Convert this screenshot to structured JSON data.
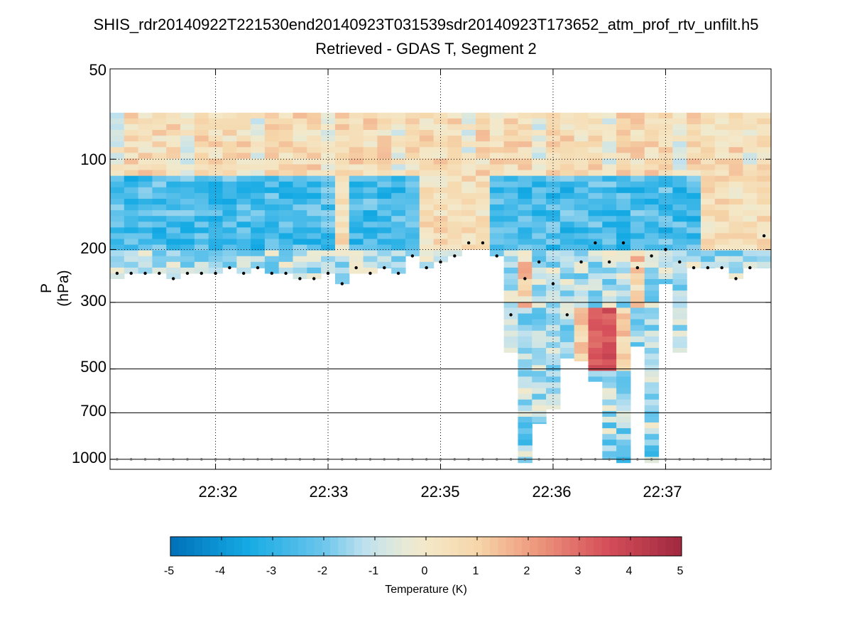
{
  "chart_data": {
    "type": "heatmap",
    "title": "SHIS_rdr20140922T221530end20140923T031539sdr20140923T173652_atm_prof_rtv_unfilt.h5",
    "subtitle": "Retrieved - GDAS T, Segment 2",
    "ylabel": "P (hPa)",
    "y_scale": "log",
    "y_reversed": true,
    "ylim": [
      50,
      1080
    ],
    "y_ticks": [
      {
        "value": 50,
        "label": "50"
      },
      {
        "value": 100,
        "label": "100"
      },
      {
        "value": 200,
        "label": "200"
      },
      {
        "value": 300,
        "label": "300"
      },
      {
        "value": 500,
        "label": "500"
      },
      {
        "value": 700,
        "label": "700"
      },
      {
        "value": 1000,
        "label": "1000"
      }
    ],
    "x_columns": 47,
    "x_ticks": [
      {
        "index": 7.5,
        "label": "22:32"
      },
      {
        "index": 15.5,
        "label": "22:33"
      },
      {
        "index": 23.5,
        "label": "22:35"
      },
      {
        "index": 31.5,
        "label": "22:36"
      },
      {
        "index": 39.5,
        "label": "22:37"
      }
    ],
    "grid": "dotted vertical at x ticks and at 100/200 hPa; solid at 300/500/700/1000 hPa",
    "colorbar": {
      "label": "Temperature (K)",
      "range": [
        -5,
        5
      ],
      "ticks": [
        "-5",
        "-4",
        "-3",
        "-2",
        "-1",
        "0",
        "1",
        "2",
        "3",
        "4",
        "5"
      ],
      "colormap": "blue-white-red diverging"
    },
    "surface_pressure_hPa": 1000,
    "cloud_top_pressure_hPa": [
      240,
      240,
      240,
      240,
      250,
      240,
      240,
      240,
      230,
      240,
      230,
      240,
      240,
      250,
      250,
      240,
      260,
      230,
      240,
      230,
      240,
      210,
      230,
      220,
      210,
      190,
      190,
      210,
      330,
      250,
      220,
      260,
      330,
      220,
      190,
      220,
      190,
      230,
      210,
      200,
      220,
      230,
      230,
      230,
      250,
      230,
      180
    ],
    "data_bottom_pressure_hPa": [
      250,
      240,
      240,
      240,
      250,
      240,
      240,
      240,
      230,
      240,
      230,
      240,
      240,
      250,
      250,
      240,
      260,
      240,
      240,
      230,
      240,
      210,
      230,
      220,
      210,
      200,
      200,
      210,
      440,
      1050,
      760,
      680,
      460,
      470,
      550,
      1000,
      1050,
      420,
      1050,
      260,
      440,
      230,
      230,
      230,
      250,
      230,
      230
    ]
  }
}
